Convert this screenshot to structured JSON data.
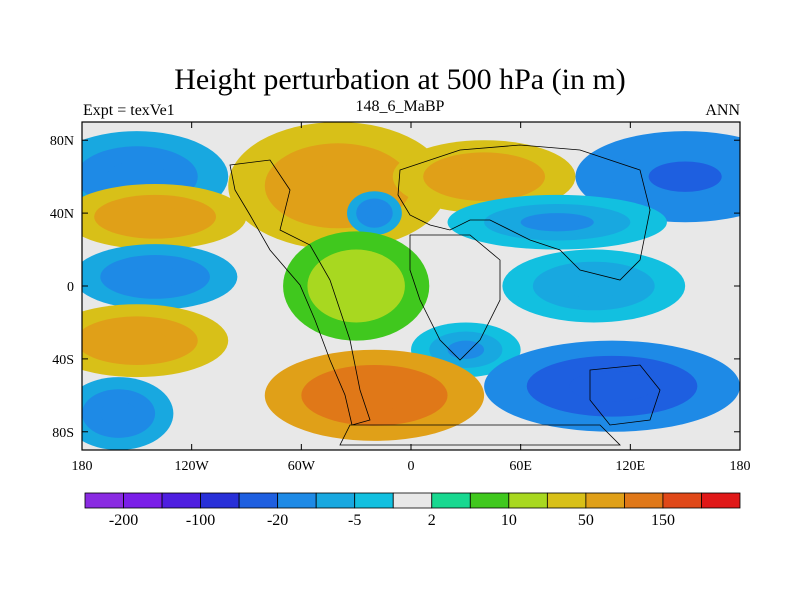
{
  "chart_data": {
    "type": "heatmap",
    "title": "Height perturbation at 500 hPa (in m)",
    "left_subtitle": "Expt = texVe1",
    "center_subtitle": "148_6_MaBP",
    "right_subtitle": "ANN",
    "xlim": [
      -180,
      180
    ],
    "ylim": [
      -90,
      90
    ],
    "x_ticks": [
      {
        "value": -180,
        "label": "180"
      },
      {
        "value": -120,
        "label": "120W"
      },
      {
        "value": -60,
        "label": "60W"
      },
      {
        "value": 0,
        "label": "0"
      },
      {
        "value": 60,
        "label": "60E"
      },
      {
        "value": 120,
        "label": "120E"
      },
      {
        "value": 180,
        "label": "180"
      }
    ],
    "y_ticks": [
      {
        "value": 80,
        "label": "80N"
      },
      {
        "value": 40,
        "label": "40N"
      },
      {
        "value": 0,
        "label": "0"
      },
      {
        "value": -40,
        "label": "40S"
      },
      {
        "value": -80,
        "label": "80S"
      }
    ],
    "colorbar": {
      "colors": [
        "#8a2be2",
        "#7a1ee8",
        "#4e1ee0",
        "#2830d8",
        "#1e5fe0",
        "#1e8ae6",
        "#18a8e0",
        "#12c0e0",
        "#e8e8e8",
        "#18d890",
        "#40c81e",
        "#a8d820",
        "#d8c018",
        "#e0a018",
        "#e07818",
        "#e04818",
        "#e01818"
      ],
      "labels": [
        {
          "index": 1,
          "label": "-200"
        },
        {
          "index": 3,
          "label": "-100"
        },
        {
          "index": 5,
          "label": "-20"
        },
        {
          "index": 7,
          "label": "-5"
        },
        {
          "index": 9,
          "label": "2"
        },
        {
          "index": 11,
          "label": "10"
        },
        {
          "index": 13,
          "label": "50"
        },
        {
          "index": 15,
          "label": "150"
        }
      ]
    },
    "field_blobs": [
      {
        "lon": -150,
        "lat": 60,
        "rlon": 50,
        "rlat": 25,
        "value": -40
      },
      {
        "lon": 150,
        "lat": 60,
        "rlon": 60,
        "rlat": 25,
        "value": -60
      },
      {
        "lon": -140,
        "lat": 38,
        "rlon": 50,
        "rlat": 18,
        "value": 40
      },
      {
        "lon": -40,
        "lat": 55,
        "rlon": 60,
        "rlat": 35,
        "value": 45
      },
      {
        "lon": 40,
        "lat": 60,
        "rlon": 50,
        "rlat": 20,
        "value": 35
      },
      {
        "lon": -20,
        "lat": 40,
        "rlon": 15,
        "rlat": 12,
        "value": -30
      },
      {
        "lon": 80,
        "lat": 35,
        "rlon": 60,
        "rlat": 15,
        "value": -25
      },
      {
        "lon": -140,
        "lat": 5,
        "rlon": 45,
        "rlat": 18,
        "value": -30
      },
      {
        "lon": -30,
        "lat": 0,
        "rlon": 40,
        "rlat": 30,
        "value": 10
      },
      {
        "lon": 100,
        "lat": 0,
        "rlon": 50,
        "rlat": 20,
        "value": -15
      },
      {
        "lon": -150,
        "lat": -30,
        "rlon": 50,
        "rlat": 20,
        "value": 45
      },
      {
        "lon": 30,
        "lat": -35,
        "rlon": 30,
        "rlat": 15,
        "value": -20
      },
      {
        "lon": -20,
        "lat": -60,
        "rlon": 60,
        "rlat": 25,
        "value": 80
      },
      {
        "lon": 110,
        "lat": -55,
        "rlon": 70,
        "rlat": 25,
        "value": -80
      },
      {
        "lon": -160,
        "lat": -70,
        "rlon": 30,
        "rlat": 20,
        "value": -40
      }
    ]
  }
}
